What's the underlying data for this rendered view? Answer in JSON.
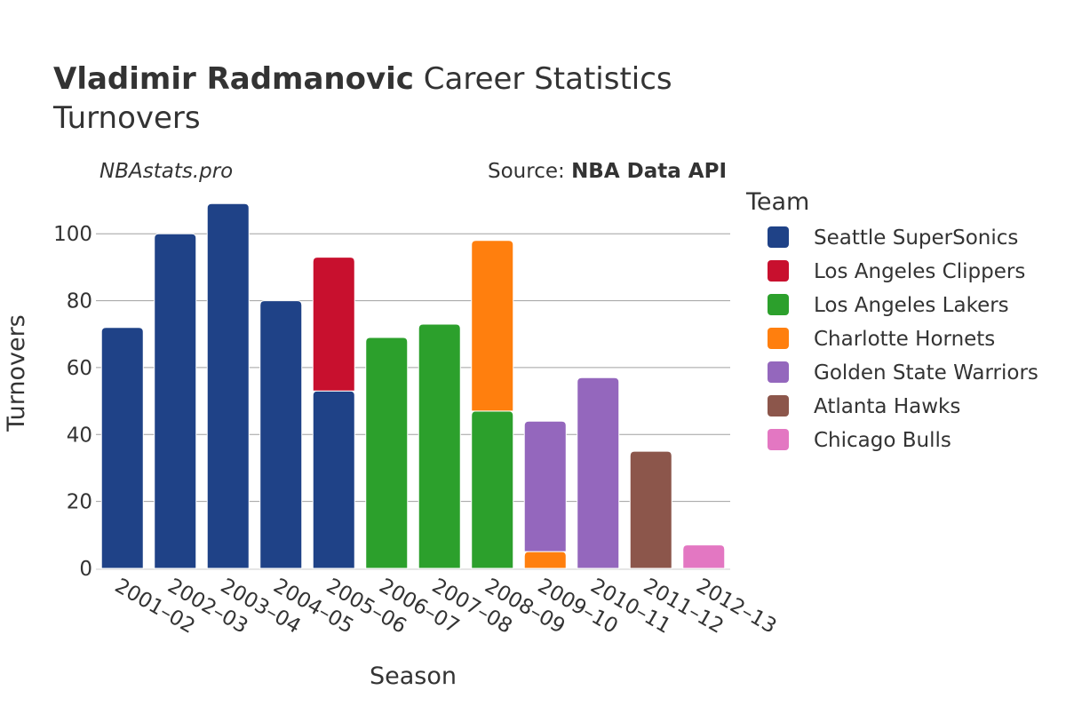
{
  "chart_data": {
    "type": "bar",
    "stacked": true,
    "title_bold": "Vladimir Radmanovic",
    "title_rest": "Career Statistics",
    "subtitle": "Turnovers",
    "watermark": "NBAstats.pro",
    "source_label": "Source:",
    "source_name": "NBA Data API",
    "xlabel": "Season",
    "ylabel": "Turnovers",
    "ylim": [
      0,
      112
    ],
    "yticks": [
      0,
      20,
      40,
      60,
      80,
      100
    ],
    "grid": true,
    "legend_title": "Team",
    "legend_position": "right",
    "categories": [
      "2001–02",
      "2002–03",
      "2003–04",
      "2004–05",
      "2005–06",
      "2006–07",
      "2007–08",
      "2008–09",
      "2009–10",
      "2010–11",
      "2011–12",
      "2012–13"
    ],
    "series": [
      {
        "name": "Seattle SuperSonics",
        "color": "#1f4287",
        "values": [
          72,
          100,
          109,
          80,
          53,
          0,
          0,
          0,
          0,
          0,
          0,
          0
        ]
      },
      {
        "name": "Los Angeles Clippers",
        "color": "#c8102e",
        "values": [
          0,
          0,
          0,
          0,
          40,
          0,
          0,
          0,
          0,
          0,
          0,
          0
        ]
      },
      {
        "name": "Los Angeles Lakers",
        "color": "#2ca02c",
        "values": [
          0,
          0,
          0,
          0,
          0,
          69,
          73,
          47,
          0,
          0,
          0,
          0
        ]
      },
      {
        "name": "Charlotte Hornets",
        "color": "#ff7f0e",
        "values": [
          0,
          0,
          0,
          0,
          0,
          0,
          0,
          51,
          5,
          0,
          0,
          0
        ]
      },
      {
        "name": "Golden State Warriors",
        "color": "#9467bd",
        "values": [
          0,
          0,
          0,
          0,
          0,
          0,
          0,
          0,
          39,
          57,
          0,
          0
        ]
      },
      {
        "name": "Atlanta Hawks",
        "color": "#8c564b",
        "values": [
          0,
          0,
          0,
          0,
          0,
          0,
          0,
          0,
          0,
          0,
          35,
          0
        ]
      },
      {
        "name": "Chicago Bulls",
        "color": "#e377c2",
        "values": [
          0,
          0,
          0,
          0,
          0,
          0,
          0,
          0,
          0,
          0,
          0,
          7
        ]
      }
    ]
  }
}
